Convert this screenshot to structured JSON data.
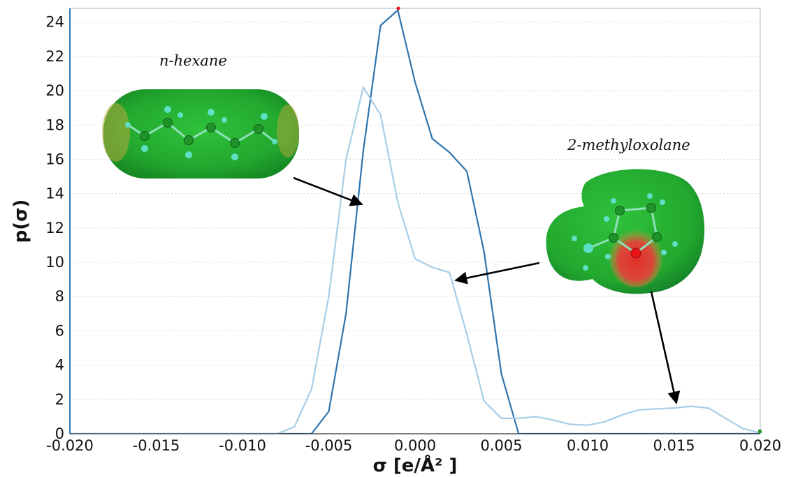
{
  "chart_data": {
    "type": "line",
    "xlabel": "σ [e/Å² ]",
    "ylabel": "p(σ)",
    "xlim": [
      -0.02,
      0.02
    ],
    "ylim": [
      0,
      24.8
    ],
    "grid": "horizontal dotted",
    "x_ticks": [
      -0.02,
      -0.015,
      -0.01,
      -0.005,
      0.0,
      0.005,
      0.01,
      0.015,
      0.02
    ],
    "x_tick_labels": [
      "-0.020",
      "-0.015",
      "-0.010",
      "-0.005",
      "0.000",
      "0.005",
      "0.010",
      "0.015",
      "0.020"
    ],
    "y_ticks": [
      0,
      2,
      4,
      6,
      8,
      10,
      12,
      14,
      16,
      18,
      20,
      22,
      24
    ],
    "y_tick_labels": [
      "0",
      "2",
      "4",
      "6",
      "8",
      "10",
      "12",
      "14",
      "16",
      "18",
      "20",
      "22",
      "24"
    ],
    "series": [
      {
        "color": "#2f74ad",
        "x": [
          -0.02,
          -0.007,
          -0.006,
          -0.005,
          -0.004,
          -0.003,
          -0.002,
          -0.001,
          0.0,
          0.001,
          0.002,
          0.003,
          0.004,
          0.005,
          0.006,
          0.02
        ],
        "y": [
          0,
          0,
          0,
          1.3,
          7.0,
          16.5,
          23.8,
          24.7,
          20.5,
          17.2,
          16.4,
          15.3,
          10.6,
          3.5,
          0,
          0
        ]
      },
      {
        "color": "#a8cde6",
        "x": [
          -0.02,
          -0.008,
          -0.007,
          -0.006,
          -0.005,
          -0.004,
          -0.003,
          -0.002,
          -0.001,
          0.0,
          0.001,
          0.002,
          0.003,
          0.004,
          0.005,
          0.006,
          0.007,
          0.008,
          0.009,
          0.01,
          0.011,
          0.012,
          0.013,
          0.014,
          0.015,
          0.016,
          0.017,
          0.018,
          0.019,
          0.02
        ],
        "y": [
          0,
          0,
          0.4,
          2.6,
          8.0,
          16.0,
          20.2,
          18.6,
          13.5,
          10.2,
          9.7,
          9.4,
          5.8,
          1.9,
          0.9,
          0.9,
          1.0,
          0.8,
          0.55,
          0.5,
          0.7,
          1.1,
          1.4,
          1.45,
          1.5,
          1.6,
          1.5,
          0.9,
          0.3,
          0.05
        ]
      }
    ],
    "annotations": [
      {
        "text": "n-hexane",
        "target": [
          -0.0032,
          13.2
        ]
      },
      {
        "text": "2-methyloxolane",
        "target": [
          0.0021,
          8.9
        ]
      },
      {
        "text": "",
        "target": [
          0.0153,
          1.45
        ]
      }
    ]
  },
  "colors": {
    "surface_green": "#1fb533",
    "surface_dark_green": "#138a24",
    "surface_red": "#e2332b",
    "surface_yellow": "#c9c93a",
    "atom_carbon": "#1e9428",
    "atom_hydrogen": "#5ee0c4",
    "atom_oxygen": "#e8141a"
  }
}
